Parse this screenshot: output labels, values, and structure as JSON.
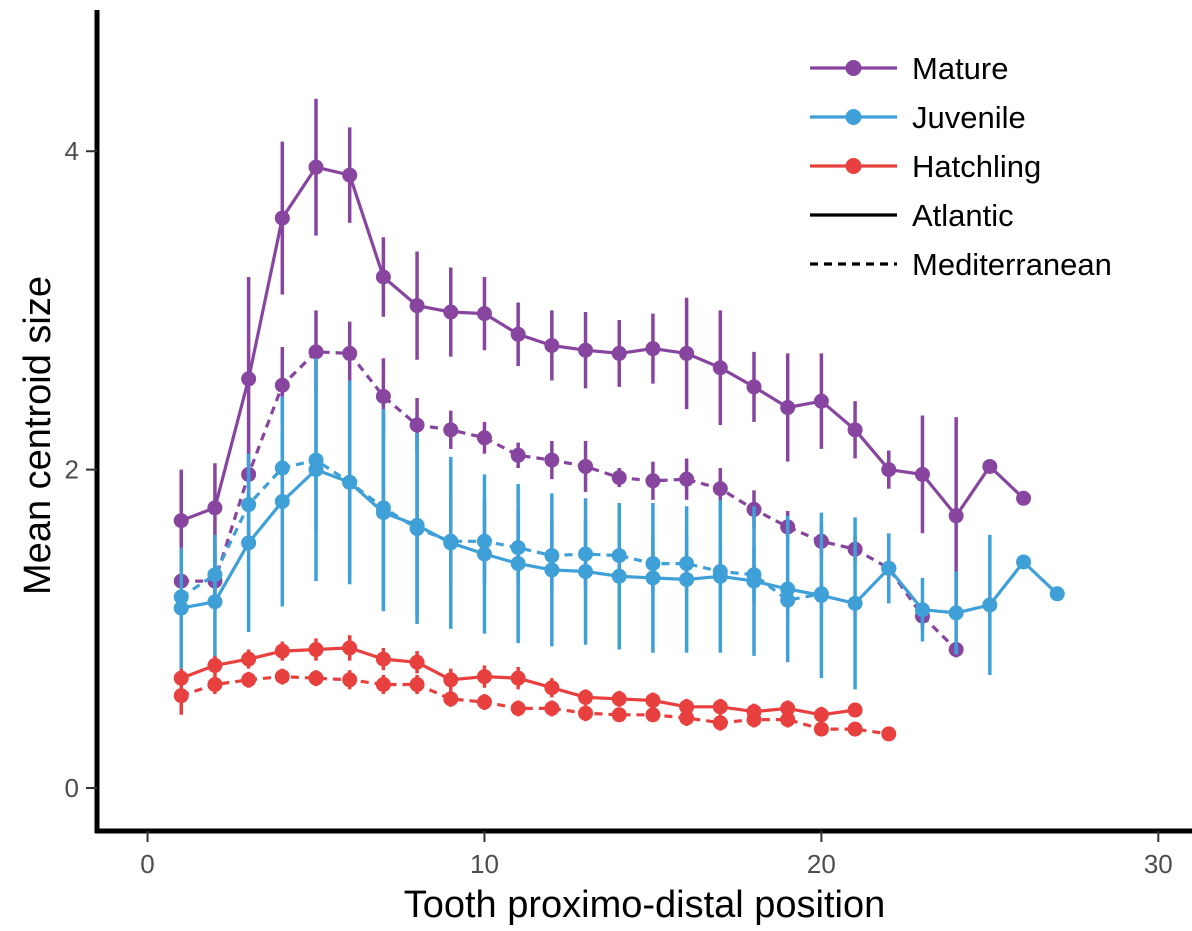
{
  "chart_data": {
    "type": "line",
    "xlabel": "Tooth proximo-distal position",
    "ylabel": "Mean centroid size",
    "xlim": [
      -1.5,
      31
    ],
    "ylim": [
      -0.27,
      4.95
    ],
    "x_ticks": [
      0,
      10,
      20,
      30
    ],
    "y_ticks": [
      0,
      2,
      4
    ],
    "grid": false,
    "legend_position": "top-right",
    "legend": [
      {
        "label": "Mature",
        "kind": "color",
        "color": "#8745a0"
      },
      {
        "label": "Juvenile",
        "kind": "color",
        "color": "#3fa0d8"
      },
      {
        "label": "Hatchling",
        "kind": "color",
        "color": "#e8403f"
      },
      {
        "label": "Atlantic",
        "kind": "linetype",
        "dash": "solid"
      },
      {
        "label": "Mediterranean",
        "kind": "linetype",
        "dash": "dashed"
      }
    ],
    "series": [
      {
        "stage": "Mature",
        "population": "Atlantic",
        "color": "#8745a0",
        "dash": "solid",
        "x": [
          1,
          2,
          3,
          4,
          5,
          6,
          7,
          8,
          9,
          10,
          11,
          12,
          13,
          14,
          15,
          16,
          17,
          18,
          19,
          20,
          21,
          22,
          23,
          24,
          25,
          26
        ],
        "y": [
          1.68,
          1.76,
          2.57,
          3.58,
          3.9,
          3.85,
          3.21,
          3.03,
          2.99,
          2.98,
          2.85,
          2.78,
          2.75,
          2.73,
          2.76,
          2.73,
          2.64,
          2.52,
          2.39,
          2.43,
          2.25,
          2.0,
          1.97,
          1.71,
          2.02,
          1.82
        ],
        "err": [
          0.32,
          0.28,
          0.64,
          0.48,
          0.43,
          0.3,
          0.25,
          0.34,
          0.28,
          0.23,
          0.2,
          0.22,
          0.24,
          0.21,
          0.22,
          0.35,
          0.36,
          0.22,
          0.34,
          0.3,
          0.18,
          0.12,
          0.37,
          0.62,
          0,
          0
        ]
      },
      {
        "stage": "Mature",
        "population": "Mediterranean",
        "color": "#8745a0",
        "dash": "dashed",
        "x": [
          1,
          2,
          3,
          4,
          5,
          6,
          7,
          8,
          9,
          10,
          11,
          12,
          13,
          14,
          15,
          16,
          17,
          18,
          19,
          20,
          21,
          22,
          23,
          24
        ],
        "y": [
          1.3,
          1.3,
          1.97,
          2.53,
          2.74,
          2.73,
          2.46,
          2.28,
          2.25,
          2.2,
          2.09,
          2.06,
          2.02,
          1.95,
          1.93,
          1.94,
          1.88,
          1.75,
          1.64,
          1.55,
          1.5,
          1.38,
          1.08,
          0.87
        ],
        "err": [
          0.18,
          0.18,
          0.18,
          0.24,
          0.26,
          0.2,
          0.24,
          0.17,
          0.12,
          0.1,
          0.08,
          0.12,
          0.16,
          0.06,
          0.12,
          0.13,
          0.13,
          0.12,
          0.1,
          0.1,
          0.08,
          0.07,
          0.08,
          0.05
        ]
      },
      {
        "stage": "Juvenile",
        "population": "Atlantic",
        "color": "#3fa0d8",
        "dash": "solid",
        "x": [
          1,
          2,
          3,
          4,
          5,
          6,
          7,
          8,
          9,
          10,
          11,
          12,
          13,
          14,
          15,
          16,
          17,
          18,
          19,
          20,
          21,
          22,
          23,
          24,
          25,
          26,
          27
        ],
        "y": [
          1.13,
          1.17,
          1.54,
          1.8,
          2.0,
          1.92,
          1.73,
          1.65,
          1.54,
          1.47,
          1.41,
          1.37,
          1.36,
          1.33,
          1.32,
          1.31,
          1.33,
          1.3,
          1.25,
          1.21,
          1.16,
          1.38,
          1.12,
          1.1,
          1.15,
          1.42,
          1.22
        ],
        "err": [
          0.38,
          0.42,
          0.56,
          0.66,
          0.7,
          0.62,
          0.62,
          0.58,
          0.54,
          0.5,
          0.5,
          0.48,
          0.46,
          0.46,
          0.47,
          0.46,
          0.48,
          0.47,
          0.46,
          0.52,
          0.54,
          0.22,
          0.2,
          0.26,
          0.44,
          0,
          0
        ]
      },
      {
        "stage": "Juvenile",
        "population": "Mediterranean",
        "color": "#3fa0d8",
        "dash": "dashed",
        "x": [
          1,
          2,
          3,
          4,
          5,
          6,
          7,
          8,
          9,
          10,
          11,
          12,
          13,
          14,
          15,
          16,
          17,
          18,
          19,
          20
        ],
        "y": [
          1.2,
          1.34,
          1.78,
          2.01,
          2.06,
          1.92,
          1.76,
          1.63,
          1.55,
          1.55,
          1.51,
          1.46,
          1.47,
          1.46,
          1.41,
          1.41,
          1.36,
          1.34,
          1.18,
          1.22
        ],
        "err": [
          0.14,
          0.16,
          0.2,
          0.22,
          0.44,
          0.64,
          0.62,
          0.6,
          0.3,
          0.26,
          0.24,
          0.22,
          0.22,
          0.2,
          0.18,
          0.18,
          0.18,
          0.18,
          0.12,
          0.1
        ]
      },
      {
        "stage": "Hatchling",
        "population": "Atlantic",
        "color": "#e8403f",
        "dash": "solid",
        "x": [
          1,
          2,
          3,
          4,
          5,
          6,
          7,
          8,
          9,
          10,
          11,
          12,
          13,
          14,
          15,
          16,
          17,
          18,
          19,
          20,
          21
        ],
        "y": [
          0.69,
          0.77,
          0.81,
          0.86,
          0.87,
          0.88,
          0.81,
          0.79,
          0.68,
          0.7,
          0.69,
          0.63,
          0.57,
          0.56,
          0.55,
          0.51,
          0.51,
          0.48,
          0.5,
          0.46,
          0.49
        ],
        "err": [
          0.06,
          0.06,
          0.06,
          0.06,
          0.07,
          0.08,
          0.07,
          0.07,
          0.07,
          0.07,
          0.07,
          0.06,
          0.05,
          0.05,
          0.05,
          0.05,
          0.05,
          0.05,
          0.05,
          0.05,
          0.04
        ]
      },
      {
        "stage": "Hatchling",
        "population": "Mediterranean",
        "color": "#e8403f",
        "dash": "dashed",
        "x": [
          1,
          2,
          3,
          4,
          5,
          6,
          7,
          8,
          9,
          10,
          11,
          12,
          13,
          14,
          15,
          16,
          17,
          18,
          19,
          20,
          21,
          22
        ],
        "y": [
          0.58,
          0.65,
          0.68,
          0.7,
          0.69,
          0.68,
          0.65,
          0.65,
          0.56,
          0.54,
          0.5,
          0.5,
          0.47,
          0.46,
          0.46,
          0.44,
          0.41,
          0.43,
          0.43,
          0.37,
          0.37,
          0.34
        ],
        "err": [
          0.12,
          0.06,
          0.05,
          0.05,
          0.05,
          0.06,
          0.06,
          0.06,
          0.05,
          0.05,
          0.05,
          0.05,
          0.05,
          0.04,
          0.04,
          0.05,
          0.05,
          0.05,
          0.05,
          0.04,
          0.04,
          0.03
        ]
      }
    ]
  }
}
